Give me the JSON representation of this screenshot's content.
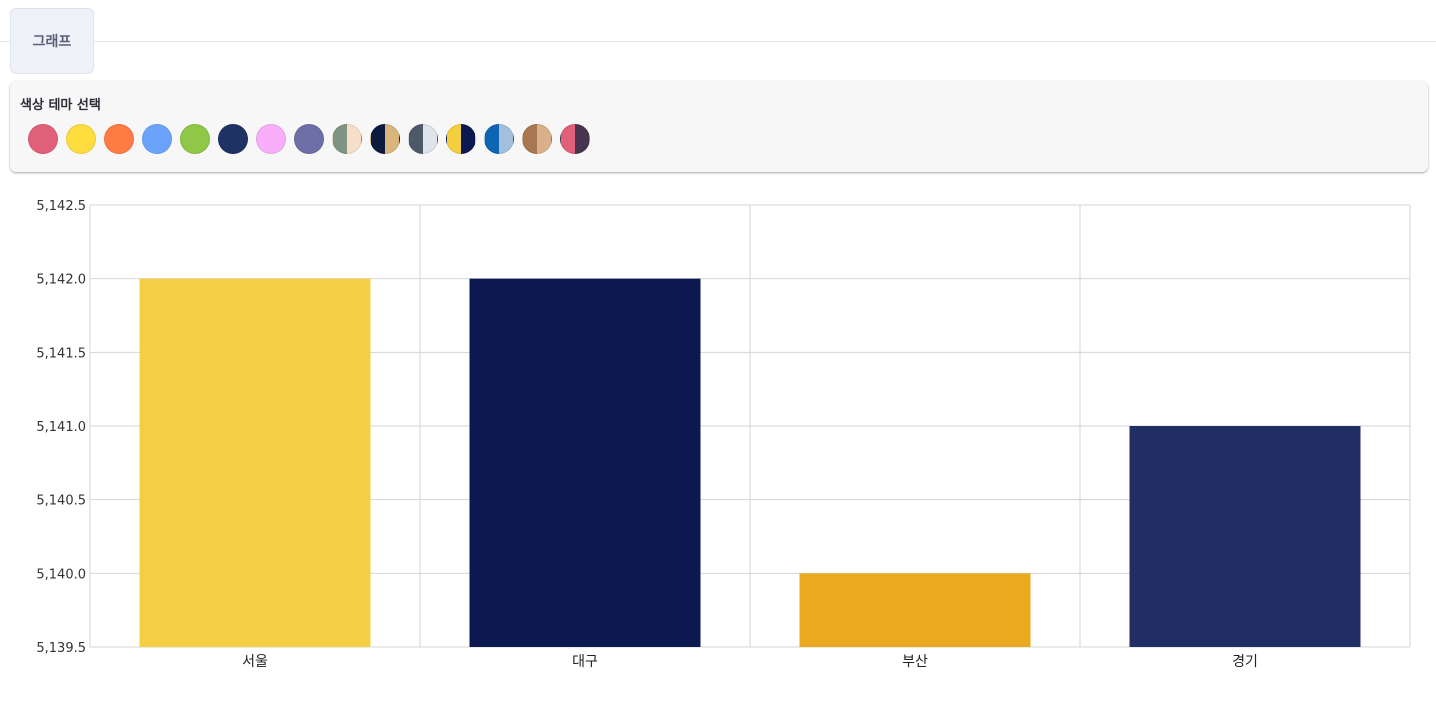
{
  "tabs": [
    {
      "label": "그래프"
    }
  ],
  "theme": {
    "title": "색상 테마 선택",
    "swatches": [
      {
        "name": "rose",
        "colors": [
          "#e0607a"
        ]
      },
      {
        "name": "yellow",
        "colors": [
          "#fedd3f"
        ]
      },
      {
        "name": "orange",
        "colors": [
          "#fe7c44"
        ]
      },
      {
        "name": "sky-blue",
        "colors": [
          "#6ba3fb"
        ]
      },
      {
        "name": "green",
        "colors": [
          "#8fc746"
        ]
      },
      {
        "name": "navy",
        "colors": [
          "#1e3263"
        ]
      },
      {
        "name": "pink",
        "colors": [
          "#f9aef9"
        ]
      },
      {
        "name": "lavender-pattern",
        "colors": [
          "#6e6fa7"
        ]
      },
      {
        "name": "sage-cream",
        "colors": [
          "#7f9482",
          "#f6dec8"
        ]
      },
      {
        "name": "navy-sand",
        "colors": [
          "#0b1a3d",
          "#d9b47c"
        ]
      },
      {
        "name": "slate-mist",
        "colors": [
          "#4d5868",
          "#dfe3ea"
        ]
      },
      {
        "name": "gold-navy",
        "colors": [
          "#f3cf3f",
          "#0c1950"
        ]
      },
      {
        "name": "blue-ice",
        "colors": [
          "#0d65b4",
          "#a3bfde"
        ]
      },
      {
        "name": "brown-tan",
        "colors": [
          "#a67751",
          "#d9b08a"
        ]
      },
      {
        "name": "rose-plum",
        "colors": [
          "#e0607a",
          "#47344e"
        ]
      }
    ]
  },
  "chart_data": {
    "type": "bar",
    "categories": [
      "서울",
      "대구",
      "부산",
      "경기"
    ],
    "values": [
      5142,
      5142,
      5140,
      5141
    ],
    "bar_colors": [
      "#f4cf44",
      "#0c1950",
      "#e9aa1f",
      "#212e63"
    ],
    "ylim": [
      5139.5,
      5142.5
    ],
    "yticks": [
      "5,139.5",
      "5,140.0",
      "5,140.5",
      "5,141.0",
      "5,141.5",
      "5,142.0",
      "5,142.5"
    ],
    "grid": true,
    "title": "",
    "xlabel": "",
    "ylabel": ""
  }
}
